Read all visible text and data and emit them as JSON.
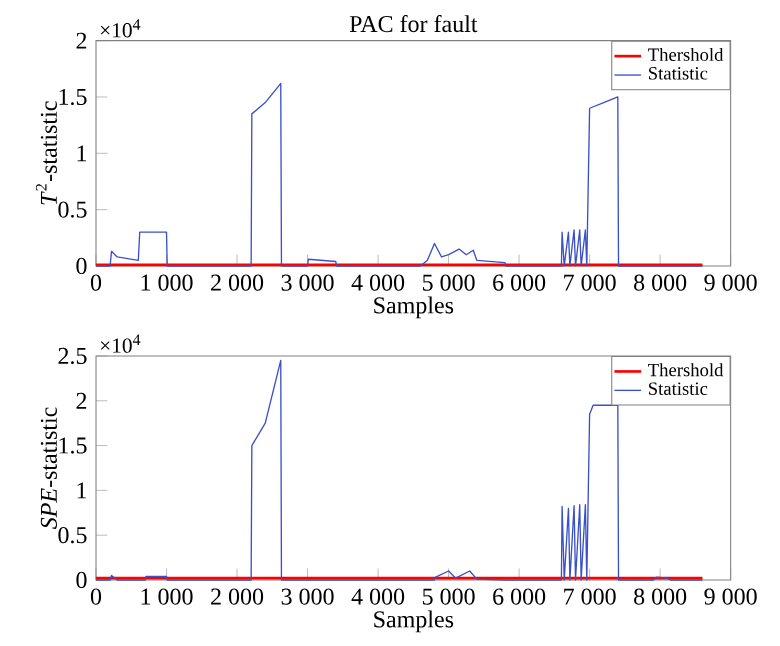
{
  "chart_data": [
    {
      "type": "line",
      "title": "PAC for fault",
      "xlabel": "Samples",
      "ylabel": "*T*$^{2}$-statistic",
      "annotations": [
        "×10$^{4}$"
      ],
      "xlim": [
        0,
        9000
      ],
      "ylim": [
        0,
        2
      ],
      "xticks": [
        0,
        {
          "value": 1000,
          "label": "1 000"
        },
        {
          "value": 2000,
          "label": "2 000"
        },
        {
          "value": 3000,
          "label": "3 000"
        },
        {
          "value": 4000,
          "label": "4 000"
        },
        {
          "value": 5000,
          "label": "5 000"
        },
        {
          "value": 6000,
          "label": "6 000"
        },
        {
          "value": 7000,
          "label": "7 000"
        },
        {
          "value": 8000,
          "label": "8 000"
        },
        {
          "value": 9000,
          "label": "9 000"
        }
      ],
      "yticks": [
        0,
        0.5,
        1,
        1.5,
        2
      ],
      "legend": "top right",
      "grid": false,
      "series": [
        {
          "name": "Thershold",
          "color": "#ff0000",
          "x": [
            0,
            8600
          ],
          "values": [
            0.01,
            0.01
          ]
        },
        {
          "name": "Statistic",
          "color": "#3a50c8",
          "x": [
            0,
            200,
            220,
            300,
            600,
            620,
            1000,
            1010,
            2200,
            2210,
            2400,
            2620,
            2630,
            3000,
            3010,
            3400,
            3410,
            4600,
            4700,
            4800,
            4900,
            5000,
            5150,
            5250,
            5350,
            5400,
            5800,
            5810,
            6600,
            6610,
            6640,
            6700,
            6720,
            6780,
            6800,
            6860,
            6880,
            6940,
            6960,
            7000,
            7200,
            7400,
            7410,
            8600
          ],
          "values": [
            0,
            0,
            0.13,
            0.08,
            0.05,
            0.3,
            0.3,
            0,
            0,
            1.35,
            1.45,
            1.62,
            0,
            0,
            0.06,
            0.04,
            0,
            0,
            0.05,
            0.2,
            0.08,
            0.1,
            0.15,
            0.1,
            0.14,
            0.05,
            0.03,
            0,
            0,
            0.3,
            0,
            0.3,
            0,
            0.32,
            0,
            0.32,
            0,
            0.32,
            0,
            1.4,
            1.45,
            1.5,
            0,
            0
          ]
        }
      ]
    },
    {
      "type": "line",
      "xlabel": "Samples",
      "ylabel": "*SPE*-statistic",
      "annotations": [
        "×10$^{4}$"
      ],
      "xlim": [
        0,
        9000
      ],
      "ylim": [
        0,
        2.5
      ],
      "xticks": [
        0,
        {
          "value": 1000,
          "label": "1 000"
        },
        {
          "value": 2000,
          "label": "2 000"
        },
        {
          "value": 3000,
          "label": "3 000"
        },
        {
          "value": 4000,
          "label": "4 000"
        },
        {
          "value": 5000,
          "label": "5 000"
        },
        {
          "value": 6000,
          "label": "6 000"
        },
        {
          "value": 7000,
          "label": "7 000"
        },
        {
          "value": 8000,
          "label": "8 000"
        },
        {
          "value": 9000,
          "label": "9 000"
        }
      ],
      "yticks": [
        0,
        0.5,
        1,
        1.5,
        2,
        2.5
      ],
      "legend": "top right",
      "grid": false,
      "series": [
        {
          "name": "Thershold",
          "color": "#ff0000",
          "x": [
            0,
            8600
          ],
          "values": [
            0.02,
            0.02
          ]
        },
        {
          "name": "Statistic",
          "color": "#3a50c8",
          "x": [
            0,
            200,
            220,
            300,
            700,
            710,
            1000,
            1010,
            2200,
            2210,
            2400,
            2620,
            2630,
            4800,
            4810,
            5000,
            5100,
            5300,
            5400,
            5800,
            6600,
            6610,
            6640,
            6700,
            6720,
            6780,
            6800,
            6860,
            6880,
            6940,
            6960,
            7000,
            7050,
            7400,
            7410,
            7900,
            7950,
            8100,
            8150,
            8600
          ],
          "values": [
            0,
            0,
            0.05,
            0,
            0,
            0.04,
            0.04,
            0,
            0,
            1.5,
            1.75,
            2.45,
            0,
            0,
            0.03,
            0.1,
            0.02,
            0.1,
            0.01,
            0,
            0,
            0.82,
            0,
            0.8,
            0,
            0.83,
            0,
            0.84,
            0,
            0.84,
            0,
            1.85,
            1.95,
            1.95,
            0,
            0,
            0.03,
            0.02,
            0,
            0
          ]
        }
      ]
    }
  ]
}
